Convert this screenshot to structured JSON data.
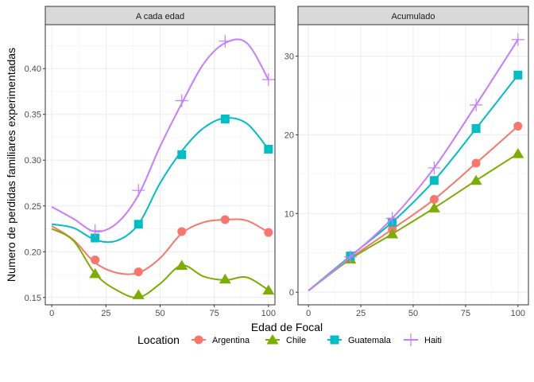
{
  "chart_data": [
    {
      "type": "line",
      "strip_label": "A cada edad",
      "x": [
        20,
        40,
        60,
        80,
        100
      ],
      "xlim": [
        -3,
        103
      ],
      "ylim": [
        0.142,
        0.448
      ],
      "x_ticks": [
        0,
        25,
        50,
        75,
        100
      ],
      "y_ticks": [
        0.15,
        0.2,
        0.25,
        0.3,
        0.35,
        0.4
      ],
      "y_tick_labels": [
        "0.15",
        "0.20",
        "0.25",
        "0.30",
        "0.35",
        "0.40"
      ],
      "series": [
        {
          "name": "Argentina",
          "values": [
            0.191,
            0.178,
            0.222,
            0.235,
            0.221
          ],
          "smooth_x": [
            0,
            10,
            20,
            30,
            40,
            50,
            60,
            70,
            80,
            90,
            100
          ],
          "smooth_y": [
            0.228,
            0.213,
            0.188,
            0.177,
            0.177,
            0.193,
            0.22,
            0.232,
            0.235,
            0.234,
            0.221
          ]
        },
        {
          "name": "Chile",
          "values": [
            0.176,
            0.153,
            0.185,
            0.17,
            0.158
          ],
          "smooth_x": [
            0,
            10,
            20,
            30,
            40,
            50,
            60,
            70,
            80,
            90,
            100
          ],
          "smooth_y": [
            0.225,
            0.212,
            0.176,
            0.158,
            0.15,
            0.165,
            0.185,
            0.173,
            0.169,
            0.172,
            0.158
          ]
        },
        {
          "name": "Guatemala",
          "values": [
            0.215,
            0.23,
            0.306,
            0.345,
            0.312
          ],
          "smooth_x": [
            0,
            10,
            20,
            30,
            40,
            50,
            60,
            70,
            80,
            90,
            100
          ],
          "smooth_y": [
            0.23,
            0.226,
            0.213,
            0.212,
            0.23,
            0.275,
            0.31,
            0.335,
            0.346,
            0.34,
            0.312
          ]
        },
        {
          "name": "Haiti",
          "values": [
            0.223,
            0.267,
            0.365,
            0.43,
            0.388
          ],
          "smooth_x": [
            0,
            10,
            20,
            30,
            40,
            50,
            60,
            70,
            80,
            90,
            100
          ],
          "smooth_y": [
            0.249,
            0.236,
            0.222,
            0.231,
            0.262,
            0.315,
            0.362,
            0.405,
            0.428,
            0.428,
            0.388
          ]
        }
      ]
    },
    {
      "type": "line",
      "strip_label": "Acumulado",
      "x": [
        0,
        20,
        40,
        60,
        80,
        100
      ],
      "xlim": [
        -5,
        105
      ],
      "ylim": [
        -1.6,
        34.0
      ],
      "x_ticks": [
        0,
        25,
        50,
        75,
        100
      ],
      "y_ticks": [
        0,
        10,
        20,
        30
      ],
      "y_tick_labels": [
        "0",
        "10",
        "20",
        "30"
      ],
      "series": [
        {
          "name": "Argentina",
          "values": [
            0.2,
            4.3,
            8.0,
            11.8,
            16.4,
            21.1
          ]
        },
        {
          "name": "Chile",
          "values": [
            0.2,
            4.2,
            7.4,
            10.7,
            14.2,
            17.6
          ]
        },
        {
          "name": "Guatemala",
          "values": [
            0.2,
            4.6,
            8.9,
            14.2,
            20.8,
            27.6
          ]
        },
        {
          "name": "Haiti",
          "values": [
            0.2,
            4.5,
            9.4,
            15.8,
            23.8,
            32.1
          ]
        }
      ]
    }
  ],
  "xlabel": "Edad de Focal",
  "ylabel": "Numero de perdidas familiares experimentadas",
  "legend": {
    "title": "Location",
    "position": "bottom",
    "items": [
      {
        "name": "Argentina",
        "color": "#F8766D",
        "shape": "circle"
      },
      {
        "name": "Chile",
        "color": "#7CAE00",
        "shape": "triangle"
      },
      {
        "name": "Guatemala",
        "color": "#00BFC4",
        "shape": "square"
      },
      {
        "name": "Haiti",
        "color": "#C77CFF",
        "shape": "plus"
      }
    ]
  }
}
